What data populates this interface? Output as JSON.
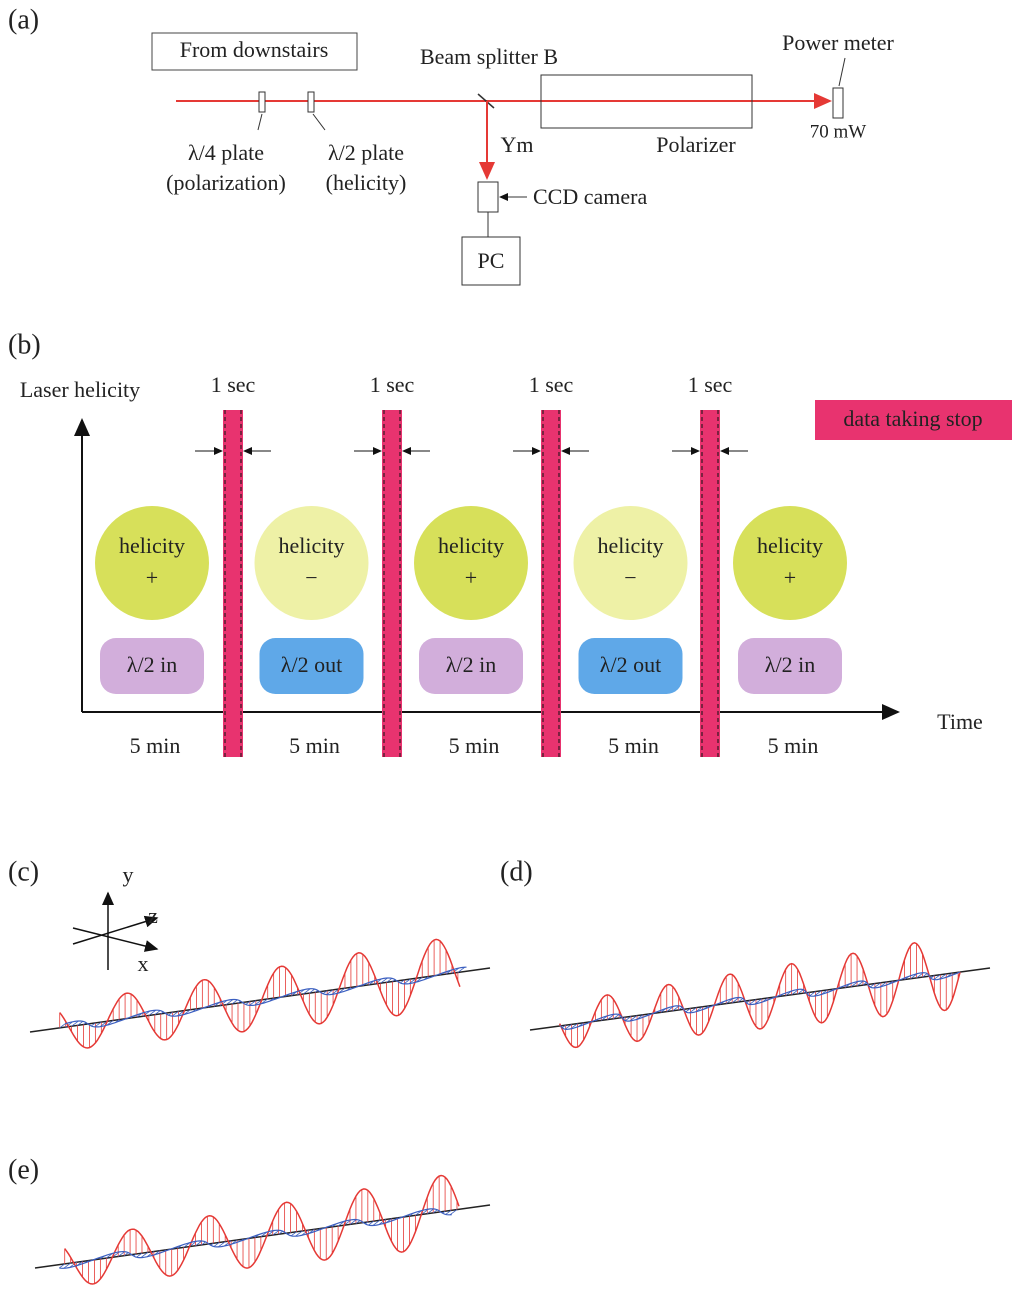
{
  "panel_a": {
    "label": "(a)",
    "source": "From downstairs",
    "beam_splitter": "Beam splitter B",
    "power_meter": "Power meter",
    "power": "70 mW",
    "quarter_plate": [
      "λ/4 plate",
      "(polarization)"
    ],
    "half_plate": [
      "λ/2 plate",
      "(helicity)"
    ],
    "ym": "Ym",
    "polarizer": "Polarizer",
    "ccd": "CCD camera",
    "pc": "PC"
  },
  "panel_b": {
    "label": "(b)",
    "y_label": "Laser helicity",
    "x_label": "Time",
    "legend": "data taking stop",
    "gap_labels": [
      "1 sec",
      "1 sec",
      "1 sec",
      "1 sec"
    ],
    "segments": [
      {
        "helicity": "helicity",
        "sign": "+",
        "plate": "λ/2 in",
        "duration": "5 min"
      },
      {
        "helicity": "helicity",
        "sign": "−",
        "plate": "λ/2 out",
        "duration": "5 min"
      },
      {
        "helicity": "helicity",
        "sign": "+",
        "plate": "λ/2 in",
        "duration": "5 min"
      },
      {
        "helicity": "helicity",
        "sign": "−",
        "plate": "λ/2 out",
        "duration": "5 min"
      },
      {
        "helicity": "helicity",
        "sign": "+",
        "plate": "λ/2 in",
        "duration": "5 min"
      }
    ]
  },
  "panel_c": {
    "label": "(c)",
    "axis_y": "y",
    "axis_z": "z",
    "axis_x": "x"
  },
  "panel_d": {
    "label": "(d)"
  },
  "panel_e": {
    "label": "(e)"
  }
}
